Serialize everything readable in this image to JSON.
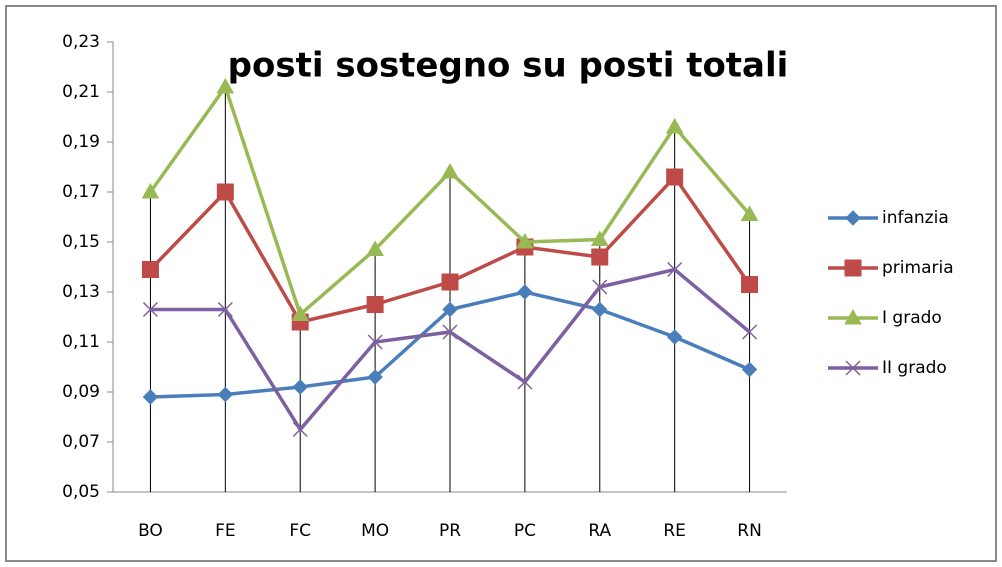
{
  "chart_data": {
    "type": "line",
    "title": "posti sostegno su posti totali",
    "categories": [
      "BO",
      "FE",
      "FC",
      "MO",
      "PR",
      "PC",
      "RA",
      "RE",
      "RN"
    ],
    "series": [
      {
        "name": "infanzia",
        "color": "#4a7ebb",
        "marker": "diamond",
        "values": [
          0.088,
          0.089,
          0.092,
          0.096,
          0.123,
          0.13,
          0.123,
          0.112,
          0.099
        ]
      },
      {
        "name": "primaria",
        "color": "#be4b48",
        "marker": "square",
        "values": [
          0.139,
          0.17,
          0.118,
          0.125,
          0.134,
          0.148,
          0.144,
          0.176,
          0.133
        ]
      },
      {
        "name": "I grado",
        "color": "#98b954",
        "marker": "triangle",
        "values": [
          0.17,
          0.212,
          0.121,
          0.147,
          0.178,
          0.15,
          0.151,
          0.196,
          0.161
        ]
      },
      {
        "name": "II grado",
        "color": "#7d60a0",
        "marker": "x",
        "values": [
          0.123,
          0.123,
          0.075,
          0.11,
          0.114,
          0.094,
          0.132,
          0.139,
          0.114
        ]
      }
    ],
    "ylim": [
      0.05,
      0.23
    ],
    "yticks": [
      {
        "value": 0.05,
        "label": "0,05"
      },
      {
        "value": 0.07,
        "label": "0,07"
      },
      {
        "value": 0.09,
        "label": "0,09"
      },
      {
        "value": 0.11,
        "label": "0,11"
      },
      {
        "value": 0.13,
        "label": "0,13"
      },
      {
        "value": 0.15,
        "label": "0,15"
      },
      {
        "value": 0.17,
        "label": "0,17"
      },
      {
        "value": 0.19,
        "label": "0,19"
      },
      {
        "value": 0.21,
        "label": "0,21"
      },
      {
        "value": 0.23,
        "label": "0,23"
      }
    ],
    "drop_lines": true,
    "legend": "right"
  }
}
